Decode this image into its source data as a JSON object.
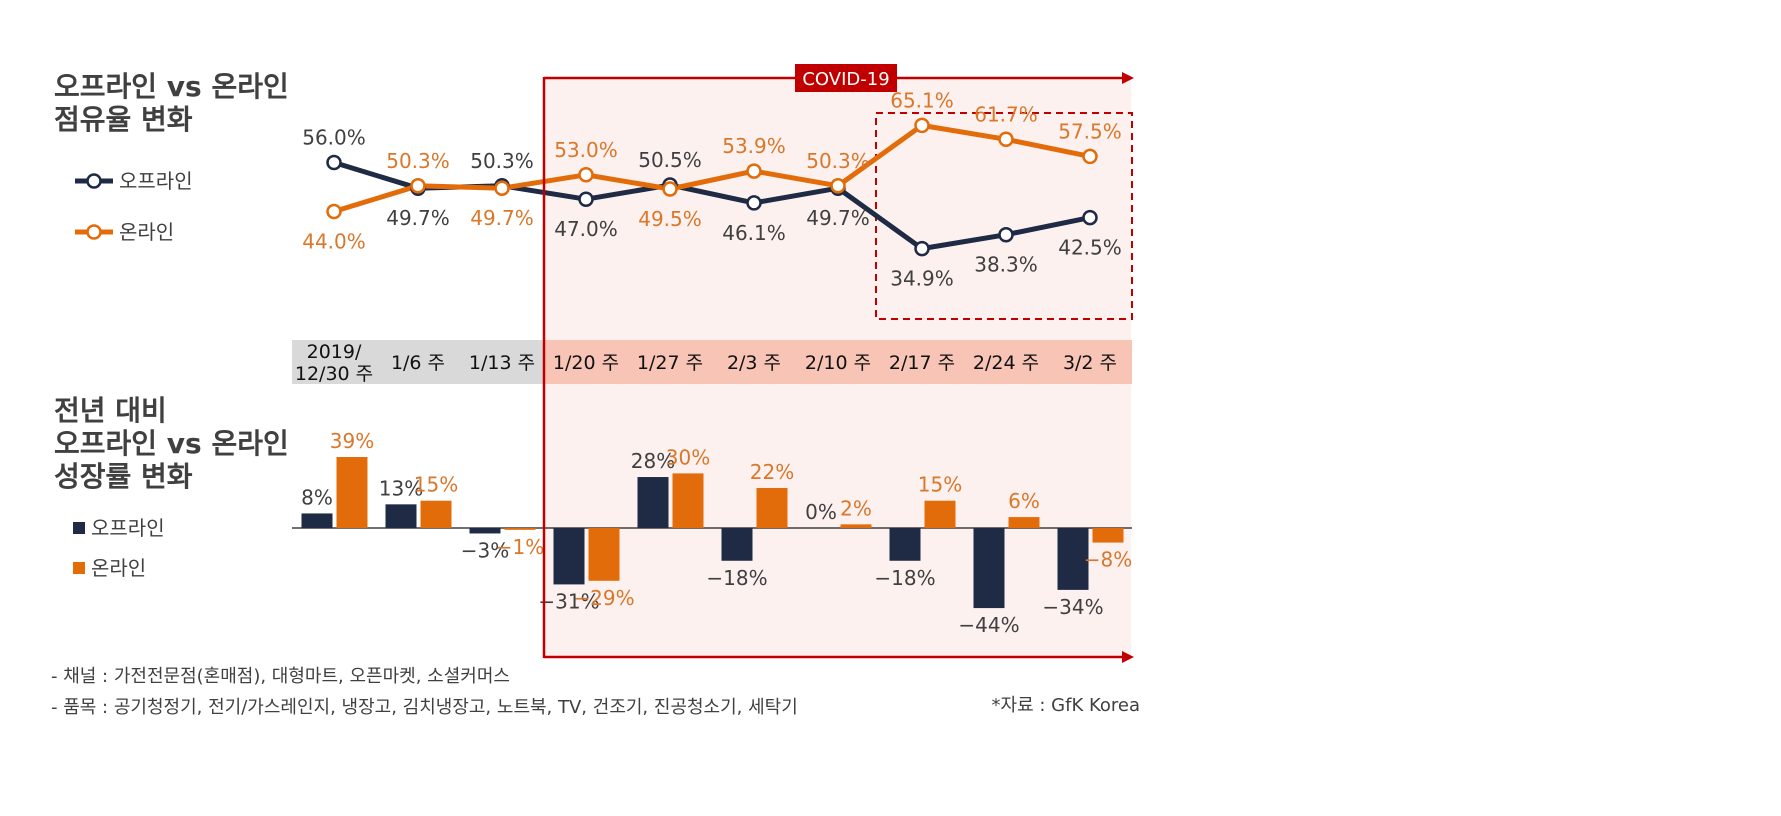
{
  "colors": {
    "offline": "#1f2a44",
    "online": "#e36c0a",
    "offline_label": "#404040",
    "online_label": "#d9772b",
    "covid_accent": "#c00000",
    "covid_bg": "#fcf1ee",
    "week_band_pre": "#d9d9d9",
    "week_band_post": "#f7c4b6"
  },
  "top_title": [
    "오프라인 vs 온라인",
    "점유율 변화"
  ],
  "bottom_title": [
    "전년 대비",
    "오프라인 vs 온라인",
    "성장률 변화"
  ],
  "covid_label": "COVID-19",
  "weeks": [
    [
      "2019/",
      "12/30 주"
    ],
    [
      "1/6 주"
    ],
    [
      "1/13 주"
    ],
    [
      "1/20 주"
    ],
    [
      "1/27 주"
    ],
    [
      "2/3 주"
    ],
    [
      "2/10 주"
    ],
    [
      "2/17 주"
    ],
    [
      "2/24 주"
    ],
    [
      "3/2 주"
    ]
  ],
  "notes": [
    "- 채널 : 가전전문점(혼매점), 대형마트, 오픈마켓, 소셜커머스",
    "- 품목 : 공기청정기, 전기/가스레인지, 냉장고, 김치냉장고, 노트북, TV, 건조기, 진공청소기, 세탁기"
  ],
  "source": "*자료 : GfK Korea",
  "chart_data": [
    {
      "type": "line",
      "title": "오프라인 vs 온라인 점유율 변화",
      "categories": [
        "2019/12/30 주",
        "1/6 주",
        "1/13 주",
        "1/20 주",
        "1/27 주",
        "2/3 주",
        "2/10 주",
        "2/17 주",
        "2/24 주",
        "3/2 주"
      ],
      "series": [
        {
          "name": "오프라인",
          "values": [
            56.0,
            49.7,
            50.3,
            47.0,
            50.5,
            46.1,
            49.7,
            34.9,
            38.3,
            42.5
          ],
          "labels": [
            "56.0%",
            "49.7%",
            "50.3%",
            "47.0%",
            "50.5%",
            "46.1%",
            "49.7%",
            "34.9%",
            "38.3%",
            "42.5%"
          ]
        },
        {
          "name": "온라인",
          "values": [
            44.0,
            50.3,
            49.7,
            53.0,
            49.5,
            53.9,
            50.3,
            65.1,
            61.7,
            57.5
          ],
          "labels": [
            "44.0%",
            "50.3%",
            "49.7%",
            "53.0%",
            "49.5%",
            "53.9%",
            "50.3%",
            "65.1%",
            "61.7%",
            "57.5%"
          ]
        }
      ],
      "legend": "left"
    },
    {
      "type": "bar",
      "title": "전년 대비 오프라인 vs 온라인 성장률 변화",
      "categories": [
        "2019/12/30 주",
        "1/6 주",
        "1/13 주",
        "1/20 주",
        "1/27 주",
        "2/3 주",
        "2/10 주",
        "2/17 주",
        "2/24 주",
        "3/2 주"
      ],
      "series": [
        {
          "name": "오프라인",
          "values": [
            8,
            13,
            -3,
            -31,
            28,
            -18,
            0,
            -18,
            -44,
            -34
          ],
          "labels": [
            "8%",
            "13%",
            "−3%",
            "−31%",
            "28%",
            "−18%",
            "0%",
            "−18%",
            "−44%",
            "−34%"
          ]
        },
        {
          "name": "온라인",
          "values": [
            39,
            15,
            -1,
            -29,
            30,
            22,
            2,
            15,
            6,
            -8
          ],
          "labels": [
            "39%",
            "15%",
            "−1%",
            "−29%",
            "30%",
            "22%",
            "2%",
            "15%",
            "6%",
            "−8%"
          ]
        }
      ],
      "legend": "left"
    }
  ]
}
